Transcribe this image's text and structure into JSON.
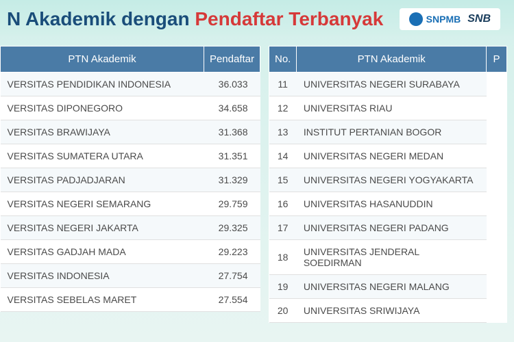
{
  "header": {
    "title_part1": "N Akademik dengan ",
    "title_highlight": "Pendaftar Terbanyak",
    "logo_snpmb": "SNPMB",
    "logo_snb": "SNB"
  },
  "table_left": {
    "columns": {
      "name": "PTN Akademik",
      "count": "Pendaftar"
    },
    "rows": [
      {
        "name": "VERSITAS PENDIDIKAN INDONESIA",
        "count": "36.033"
      },
      {
        "name": "VERSITAS DIPONEGORO",
        "count": "34.658"
      },
      {
        "name": "VERSITAS BRAWIJAYA",
        "count": "31.368"
      },
      {
        "name": "VERSITAS SUMATERA UTARA",
        "count": "31.351"
      },
      {
        "name": "VERSITAS PADJADJARAN",
        "count": "31.329"
      },
      {
        "name": "VERSITAS NEGERI SEMARANG",
        "count": "29.759"
      },
      {
        "name": "VERSITAS NEGERI JAKARTA",
        "count": "29.325"
      },
      {
        "name": "VERSITAS GADJAH MADA",
        "count": "29.223"
      },
      {
        "name": "VERSITAS INDONESIA",
        "count": "27.754"
      },
      {
        "name": "VERSITAS SEBELAS MARET",
        "count": "27.554"
      }
    ]
  },
  "table_right": {
    "columns": {
      "no": "No.",
      "name": "PTN Akademik",
      "count": "P"
    },
    "rows": [
      {
        "no": "11",
        "name": "UNIVERSITAS NEGERI SURABAYA"
      },
      {
        "no": "12",
        "name": "UNIVERSITAS RIAU"
      },
      {
        "no": "13",
        "name": "INSTITUT PERTANIAN BOGOR"
      },
      {
        "no": "14",
        "name": "UNIVERSITAS NEGERI MEDAN"
      },
      {
        "no": "15",
        "name": "UNIVERSITAS NEGERI YOGYAKARTA"
      },
      {
        "no": "16",
        "name": "UNIVERSITAS HASANUDDIN"
      },
      {
        "no": "17",
        "name": "UNIVERSITAS NEGERI PADANG"
      },
      {
        "no": "18",
        "name": "UNIVERSITAS JENDERAL SOEDIRMAN"
      },
      {
        "no": "19",
        "name": "UNIVERSITAS NEGERI MALANG"
      },
      {
        "no": "20",
        "name": "UNIVERSITAS SRIWIJAYA"
      }
    ]
  },
  "styling": {
    "header_bg": "#4a7ba6",
    "header_text_color": "#ffffff",
    "title_color": "#1a4d7a",
    "highlight_color": "#d63939",
    "row_odd_bg": "#f5f9fb",
    "row_even_bg": "#ffffff",
    "body_bg": "#d4f0eb",
    "text_color": "#4a4a4a",
    "title_fontsize": 28,
    "header_fontsize": 15,
    "cell_fontsize": 14
  }
}
